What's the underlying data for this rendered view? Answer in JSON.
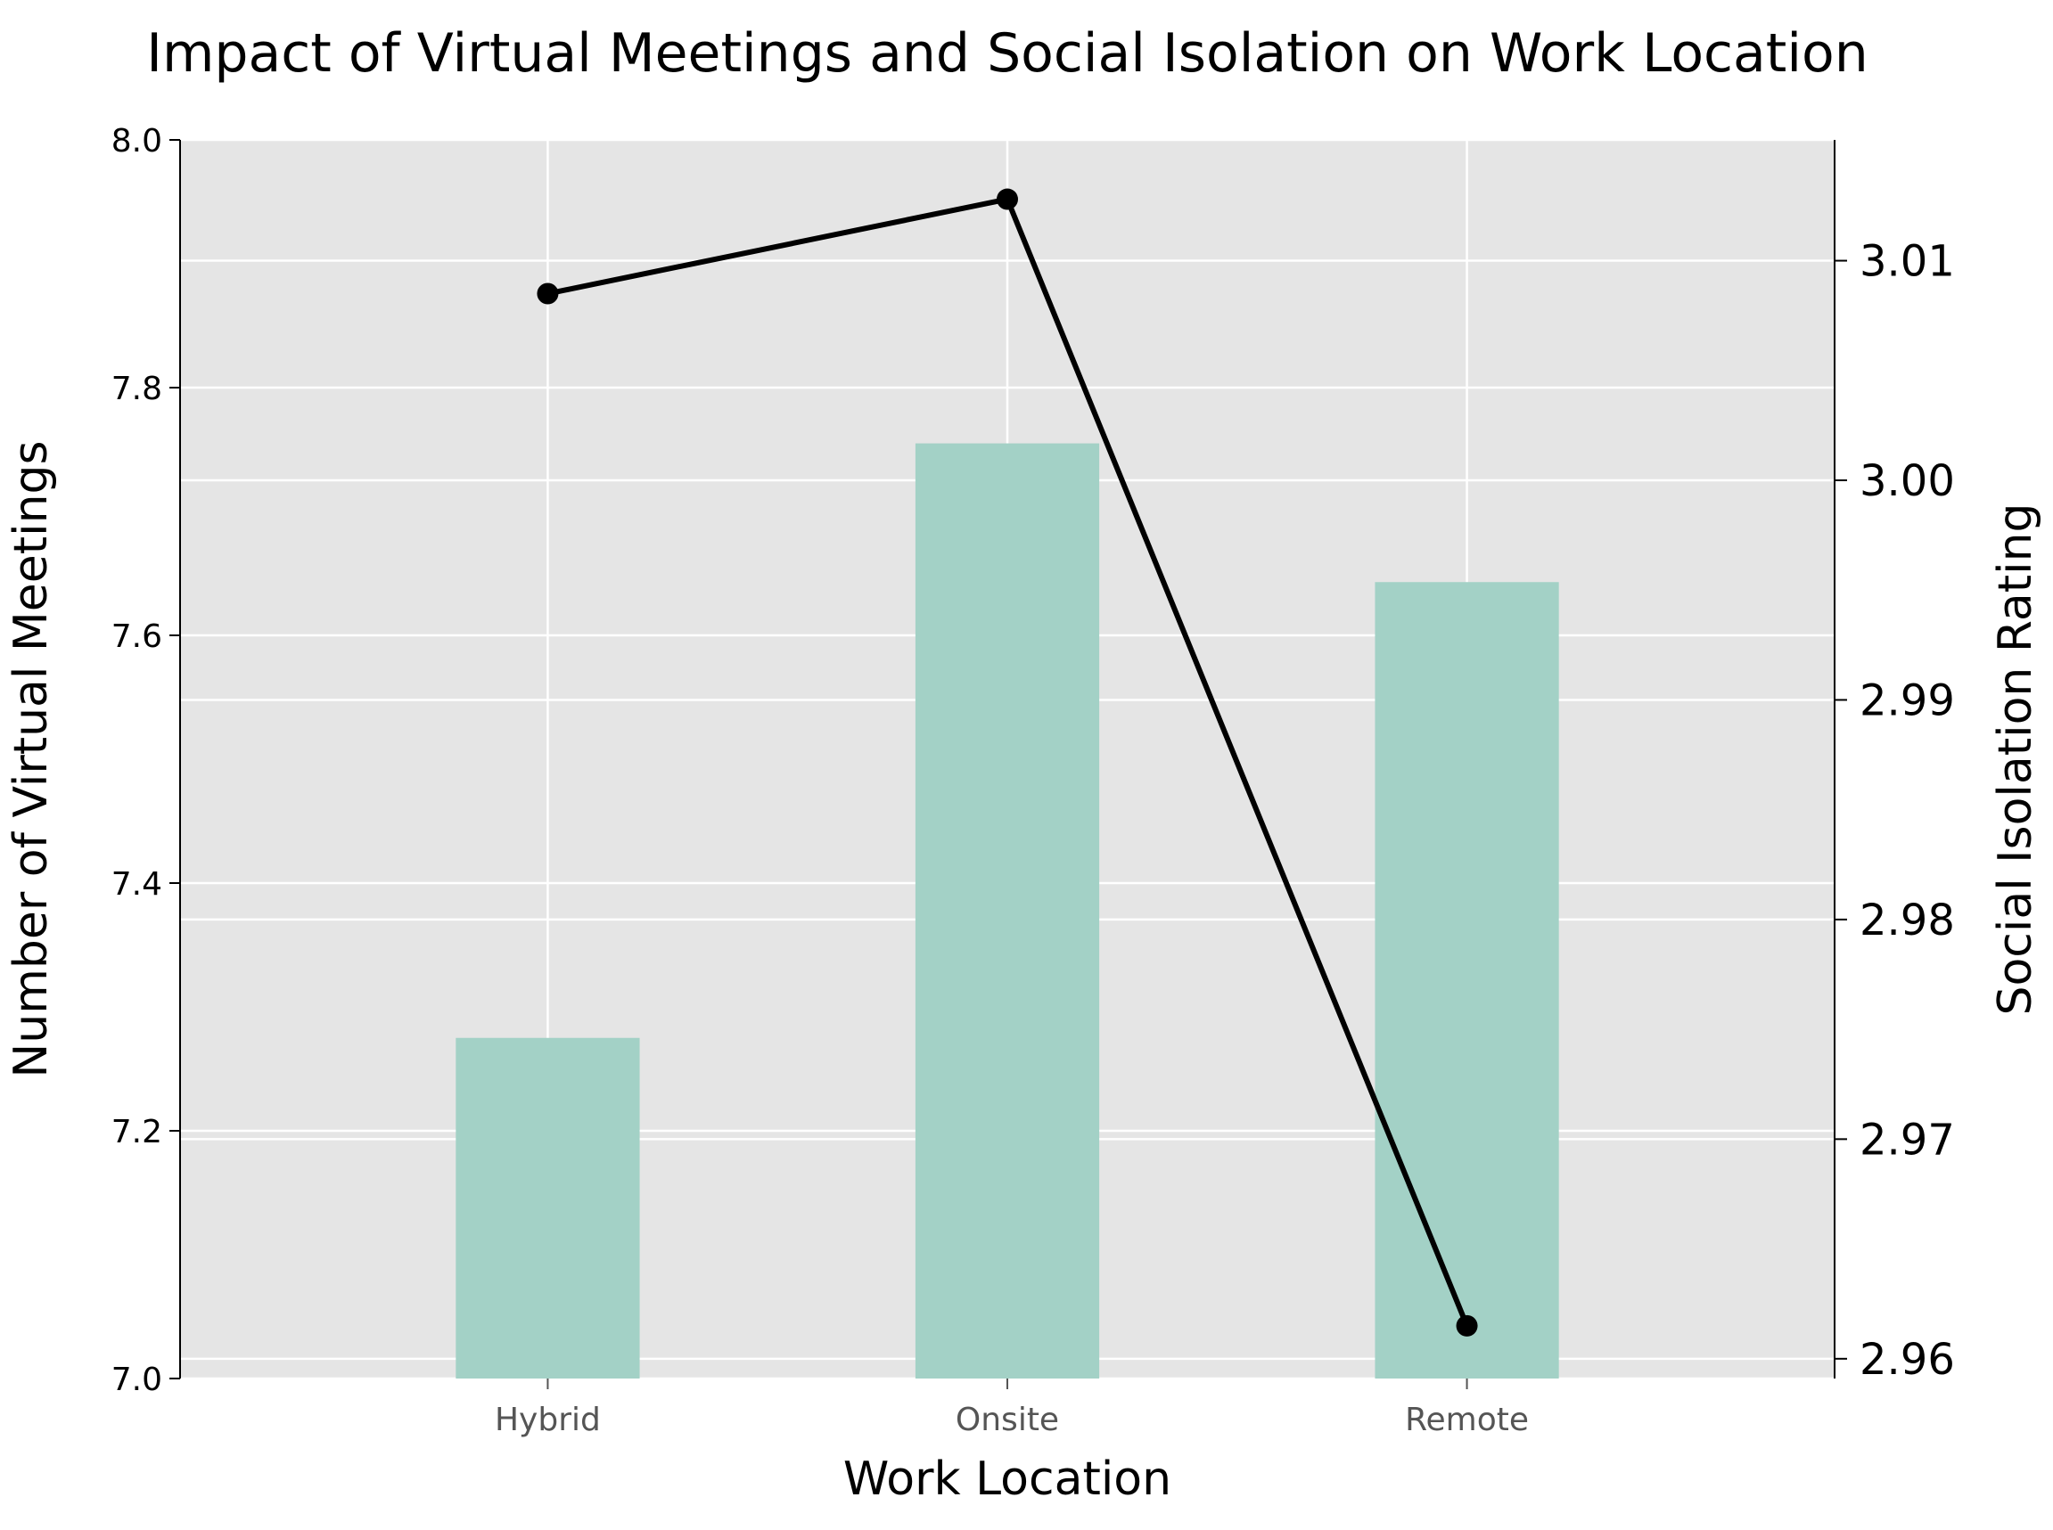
{
  "chart_data": {
    "type": "bar",
    "title": "Impact of Virtual Meetings and Social Isolation on Work Location",
    "xlabel": "Work Location",
    "ylabel": "Number of Virtual Meetings",
    "y2label": "Social Isolation Rating",
    "categories": [
      "Hybrid",
      "Onsite",
      "Remote"
    ],
    "series": [
      {
        "type": "bar",
        "axis": "left",
        "values": [
          7.275,
          7.755,
          7.643
        ]
      },
      {
        "type": "line",
        "axis": "right",
        "values": [
          3.0085,
          3.0128,
          2.9615
        ]
      }
    ],
    "ylim": [
      7.0,
      8.0
    ],
    "y2lim": [
      2.9591,
      3.0155
    ],
    "yticks": [
      "7.0",
      "7.2",
      "7.4",
      "7.6",
      "7.8",
      "8.0"
    ],
    "y2ticks": [
      "2.96",
      "2.97",
      "2.98",
      "2.99",
      "3.00",
      "3.01"
    ],
    "grid": true,
    "colors": {
      "background": "#e5e5e5",
      "grid": "#ffffff",
      "bar": "#a3d1c6",
      "line": "#000000"
    }
  }
}
